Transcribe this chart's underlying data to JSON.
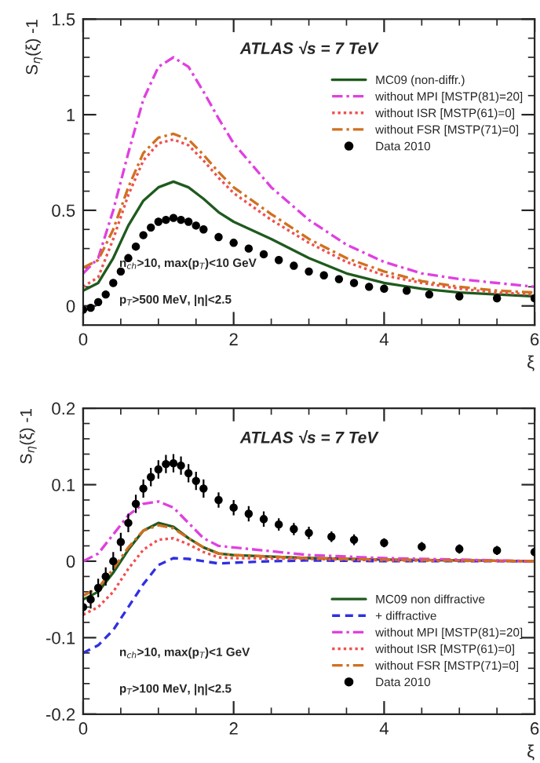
{
  "chart_data": [
    {
      "type": "line",
      "xlabel": "ξ",
      "ylabel": "S$_{η}$(ξ) -1",
      "xlim": [
        0,
        6
      ],
      "ylim": [
        -0.1,
        1.5
      ],
      "xticks": [
        0,
        2,
        4,
        6
      ],
      "yticks": [
        0,
        0.5,
        1,
        1.5
      ],
      "grid": false,
      "legend": "top right",
      "annotations": [
        "ATLAS √s = 7 TeV",
        "n$_{ch}$>10, max(p$_{T}$)<10 GeV",
        "p$_{T}$>500 MeV, |η|<2.5"
      ],
      "series": [
        {
          "name": "MC09 (non-diffr.)",
          "color": "#1f5a1f",
          "line_style": "solid",
          "x": [
            0,
            0.2,
            0.4,
            0.6,
            0.8,
            1.0,
            1.2,
            1.4,
            1.6,
            1.8,
            2.0,
            2.5,
            3,
            3.5,
            4,
            4.5,
            5,
            5.5,
            6
          ],
          "values": [
            0.08,
            0.12,
            0.25,
            0.42,
            0.55,
            0.62,
            0.65,
            0.62,
            0.56,
            0.49,
            0.44,
            0.35,
            0.25,
            0.17,
            0.12,
            0.09,
            0.07,
            0.06,
            0.05
          ]
        },
        {
          "name": "without MPI [MSTP(81)=20]",
          "color": "#e040e0",
          "line_style": "dashdot",
          "x": [
            0,
            0.2,
            0.4,
            0.6,
            0.8,
            1.0,
            1.2,
            1.4,
            1.6,
            1.8,
            2.0,
            2.5,
            3,
            3.5,
            4,
            4.5,
            5,
            5.5,
            6
          ],
          "values": [
            0.17,
            0.25,
            0.5,
            0.8,
            1.08,
            1.25,
            1.3,
            1.25,
            1.12,
            0.98,
            0.85,
            0.62,
            0.45,
            0.32,
            0.23,
            0.17,
            0.14,
            0.12,
            0.1
          ]
        },
        {
          "name": "without ISR [MSTP(61)=0]",
          "color": "#f05050",
          "line_style": "dotted",
          "x": [
            0,
            0.2,
            0.4,
            0.6,
            0.8,
            1.0,
            1.2,
            1.4,
            1.6,
            1.8,
            2.0,
            2.5,
            3,
            3.5,
            4,
            4.5,
            5,
            5.5,
            6
          ],
          "values": [
            0.1,
            0.15,
            0.35,
            0.58,
            0.76,
            0.85,
            0.87,
            0.84,
            0.76,
            0.67,
            0.59,
            0.45,
            0.33,
            0.23,
            0.16,
            0.12,
            0.09,
            0.07,
            0.06
          ]
        },
        {
          "name": "without FSR [MSTP(71)=0]",
          "color": "#d07020",
          "line_style": "dashdot",
          "x": [
            0,
            0.2,
            0.4,
            0.6,
            0.8,
            1.0,
            1.2,
            1.4,
            1.6,
            1.8,
            2.0,
            2.5,
            3,
            3.5,
            4,
            4.5,
            5,
            5.5,
            6
          ],
          "values": [
            0.2,
            0.24,
            0.4,
            0.62,
            0.8,
            0.88,
            0.9,
            0.87,
            0.79,
            0.7,
            0.62,
            0.48,
            0.35,
            0.25,
            0.18,
            0.13,
            0.1,
            0.08,
            0.07
          ]
        },
        {
          "name": "Data 2010",
          "type": "scatter",
          "marker": "circle",
          "color": "#000000",
          "x": [
            0,
            0.1,
            0.2,
            0.3,
            0.4,
            0.5,
            0.6,
            0.7,
            0.8,
            0.9,
            1.0,
            1.1,
            1.2,
            1.3,
            1.4,
            1.5,
            1.6,
            1.8,
            2.0,
            2.2,
            2.4,
            2.6,
            2.8,
            3.0,
            3.2,
            3.4,
            3.6,
            3.8,
            4.0,
            4.3,
            4.6,
            5.0,
            5.5,
            6.0
          ],
          "values": [
            -0.02,
            -0.01,
            0.02,
            0.06,
            0.12,
            0.18,
            0.25,
            0.31,
            0.37,
            0.41,
            0.44,
            0.45,
            0.46,
            0.45,
            0.44,
            0.42,
            0.4,
            0.36,
            0.33,
            0.3,
            0.27,
            0.24,
            0.21,
            0.18,
            0.16,
            0.14,
            0.12,
            0.1,
            0.09,
            0.08,
            0.06,
            0.05,
            0.04,
            0.04
          ]
        }
      ]
    },
    {
      "type": "line",
      "xlabel": "ξ",
      "ylabel": "S$_{η}$(ξ) -1",
      "xlim": [
        0,
        6
      ],
      "ylim": [
        -0.2,
        0.2
      ],
      "xticks": [
        0,
        2,
        4,
        6
      ],
      "yticks": [
        -0.2,
        -0.1,
        0,
        0.1,
        0.2
      ],
      "grid": false,
      "legend": "bottom right",
      "annotations": [
        "ATLAS √s = 7 TeV",
        "n$_{ch}$>10, max(p$_{T}$)<1 GeV",
        "p$_{T}$>100 MeV, |η|<2.5"
      ],
      "series": [
        {
          "name": "MC09 non diffractive",
          "color": "#1f5a1f",
          "line_style": "solid",
          "x": [
            0,
            0.2,
            0.4,
            0.6,
            0.8,
            1.0,
            1.2,
            1.4,
            1.6,
            1.8,
            2.0,
            2.5,
            3,
            4,
            5,
            6
          ],
          "values": [
            -0.05,
            -0.04,
            -0.015,
            0.015,
            0.04,
            0.05,
            0.045,
            0.03,
            0.018,
            0.01,
            0.008,
            0.006,
            0.004,
            0.002,
            0.001,
            0.0
          ]
        },
        {
          "name": "+ diffractive",
          "color": "#3030e0",
          "line_style": "dashed",
          "x": [
            0,
            0.2,
            0.4,
            0.6,
            0.8,
            1.0,
            1.2,
            1.4,
            1.6,
            1.8,
            2.0,
            2.5,
            3,
            4,
            6
          ],
          "values": [
            -0.12,
            -0.11,
            -0.09,
            -0.06,
            -0.03,
            -0.005,
            0.004,
            0.003,
            0.0,
            -0.003,
            -0.002,
            0.0,
            0.001,
            0.0,
            0.0
          ]
        },
        {
          "name": "without MPI [MSTP(81)=20]",
          "color": "#e040e0",
          "line_style": "dashdot",
          "x": [
            0,
            0.2,
            0.4,
            0.6,
            0.8,
            1.0,
            1.2,
            1.4,
            1.6,
            1.8,
            2.0,
            2.5,
            3,
            4,
            5,
            6
          ],
          "values": [
            0.0,
            0.01,
            0.035,
            0.06,
            0.075,
            0.078,
            0.07,
            0.05,
            0.03,
            0.02,
            0.018,
            0.013,
            0.008,
            0.004,
            0.002,
            0.0
          ]
        },
        {
          "name": "without ISR [MSTP(61)=0]",
          "color": "#f05050",
          "line_style": "dotted",
          "x": [
            0,
            0.2,
            0.4,
            0.6,
            0.8,
            1.0,
            1.2,
            1.4,
            1.6,
            1.8,
            2.0,
            3,
            4,
            6
          ],
          "values": [
            -0.07,
            -0.06,
            -0.04,
            -0.01,
            0.015,
            0.028,
            0.03,
            0.022,
            0.012,
            0.005,
            0.004,
            0.003,
            0.001,
            0.0
          ]
        },
        {
          "name": "without FSR [MSTP(71)=0]",
          "color": "#d07020",
          "line_style": "dashdot",
          "x": [
            0,
            0.2,
            0.4,
            0.6,
            0.8,
            1.0,
            1.2,
            1.4,
            1.6,
            1.8,
            2.0,
            3,
            4,
            6
          ],
          "values": [
            -0.045,
            -0.035,
            -0.01,
            0.018,
            0.04,
            0.047,
            0.043,
            0.03,
            0.018,
            0.01,
            0.008,
            0.004,
            0.002,
            0.0
          ]
        },
        {
          "name": "Data 2010",
          "type": "scatter",
          "marker": "circle",
          "color": "#000000",
          "x": [
            0,
            0.1,
            0.2,
            0.3,
            0.4,
            0.5,
            0.6,
            0.7,
            0.8,
            0.9,
            1.0,
            1.1,
            1.2,
            1.3,
            1.4,
            1.5,
            1.6,
            1.8,
            2.0,
            2.2,
            2.4,
            2.6,
            2.8,
            3.0,
            3.3,
            3.6,
            4.0,
            4.5,
            5.0,
            5.5,
            6.0
          ],
          "values": [
            -0.06,
            -0.05,
            -0.035,
            -0.02,
            0.0,
            0.025,
            0.05,
            0.075,
            0.095,
            0.11,
            0.12,
            0.127,
            0.128,
            0.125,
            0.115,
            0.105,
            0.095,
            0.08,
            0.07,
            0.062,
            0.055,
            0.048,
            0.042,
            0.037,
            0.032,
            0.028,
            0.024,
            0.019,
            0.016,
            0.014,
            0.012
          ],
          "errors": [
            0.012,
            0.012,
            0.012,
            0.012,
            0.012,
            0.012,
            0.012,
            0.012,
            0.012,
            0.012,
            0.012,
            0.012,
            0.012,
            0.012,
            0.012,
            0.012,
            0.012,
            0.01,
            0.01,
            0.01,
            0.01,
            0.008,
            0.008,
            0.008,
            0.007,
            0.007,
            0.006,
            0.006,
            0.006,
            0.006,
            0.006
          ]
        }
      ]
    }
  ]
}
